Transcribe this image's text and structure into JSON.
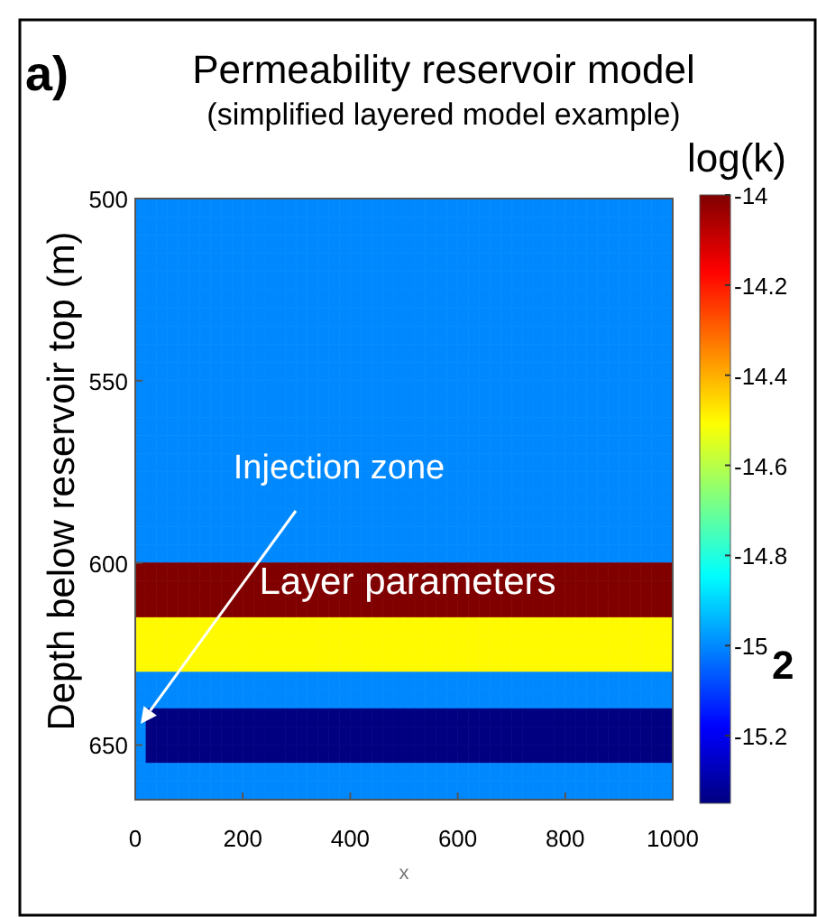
{
  "chart_data": {
    "type": "heatmap",
    "title": "Permeability reservoir model",
    "subtitle": "(simplified layered model example)",
    "ylabel": "Depth below reservoir top (m)",
    "xlabel": "x",
    "clabel": "log(k)",
    "annotations": [
      "a)",
      "Injection zone",
      "Layer parameters",
      "2"
    ],
    "xlim": [
      0,
      1000
    ],
    "xticks": [
      0,
      200,
      400,
      600,
      800,
      1000
    ],
    "ylim": [
      665,
      500
    ],
    "yticks": [
      500,
      550,
      600,
      650
    ],
    "clim": [
      -15.35,
      -14
    ],
    "cticks": [
      -14,
      -14.2,
      -14.4,
      -14.6,
      {
        "value": -14.8,
        "label": "-14.8"
      },
      -15,
      -15.2
    ],
    "cells": [
      [
        -15,
        -15,
        -15,
        -15,
        -15,
        -15,
        -15,
        -15,
        -15,
        -15,
        -15,
        -15,
        -15,
        -15,
        -15,
        -15,
        -15,
        -15,
        -15,
        -15,
        -15,
        -15,
        -15,
        -15,
        -15,
        -15,
        -15,
        -15,
        -15,
        -15,
        -15,
        -15,
        -15,
        -15,
        -15,
        -15,
        -15,
        -15,
        -15,
        -15,
        -15,
        -15,
        -15,
        -15,
        -15,
        -15,
        -15,
        -15,
        -15,
        -15
      ],
      [
        -15,
        -15,
        -15,
        -15,
        -15,
        -15,
        -15,
        -15,
        -15,
        -15,
        -15,
        -15,
        -15,
        -15,
        -15,
        -15,
        -15,
        -15,
        -15,
        -15,
        -15,
        -15,
        -15,
        -15,
        -15,
        -15,
        -15,
        -15,
        -15,
        -15,
        -15,
        -15,
        -15,
        -15,
        -15,
        -15,
        -15,
        -15,
        -15,
        -15,
        -15,
        -15,
        -15,
        -15,
        -15,
        -15,
        -15,
        -15,
        -15,
        -15
      ],
      [
        -15,
        -15,
        -15,
        -15,
        -15,
        -15,
        -15,
        -15,
        -15,
        -15,
        -15,
        -15,
        -15,
        -15,
        -15,
        -15,
        -15,
        -15,
        -15,
        -15,
        -15,
        -15,
        -15,
        -15,
        -15,
        -15,
        -15,
        -15,
        -15,
        -15,
        -15,
        -15,
        -15,
        -15,
        -15,
        -15,
        -15,
        -15,
        -15,
        -15,
        -15,
        -15,
        -15,
        -15,
        -15,
        -15,
        -15,
        -15,
        -15,
        -15
      ],
      [
        -15,
        -15,
        -15,
        -15,
        -15,
        -15,
        -15,
        -15,
        -15,
        -15,
        -15,
        -15,
        -15,
        -15,
        -15,
        -15,
        -15,
        -15,
        -15,
        -15,
        -15,
        -15,
        -15,
        -15,
        -15,
        -15,
        -15,
        -15,
        -15,
        -15,
        -15,
        -15,
        -15,
        -15,
        -15,
        -15,
        -15,
        -15,
        -15,
        -15,
        -15,
        -15,
        -15,
        -15,
        -15,
        -15,
        -15,
        -15,
        -15,
        -15
      ],
      [
        -15,
        -15,
        -15,
        -15,
        -15,
        -15,
        -15,
        -15,
        -15,
        -15,
        -15,
        -15,
        -15,
        -15,
        -15,
        -15,
        -15,
        -15,
        -15,
        -15,
        -15,
        -15,
        -15,
        -15,
        -15,
        -15,
        -15,
        -15,
        -15,
        -15,
        -15,
        -15,
        -15,
        -15,
        -15,
        -15,
        -15,
        -15,
        -15,
        -15,
        -15,
        -15,
        -15,
        -15,
        -15,
        -15,
        -15,
        -15,
        -15,
        -15
      ],
      [
        -15,
        -15,
        -15,
        -15,
        -15,
        -15,
        -15,
        -15,
        -15,
        -15,
        -15,
        -15,
        -15,
        -15,
        -15,
        -15,
        -15,
        -15,
        -15,
        -15,
        -15,
        -15,
        -15,
        -15,
        -15,
        -15,
        -15,
        -15,
        -15,
        -15,
        -15,
        -15,
        -15,
        -15,
        -15,
        -15,
        -15,
        -15,
        -15,
        -15,
        -15,
        -15,
        -15,
        -15,
        -15,
        -15,
        -15,
        -15,
        -15,
        -15
      ],
      [
        -15,
        -15,
        -15,
        -15,
        -15,
        -15,
        -15,
        -15,
        -15,
        -15,
        -15,
        -15,
        -15,
        -15,
        -15,
        -15,
        -15,
        -15,
        -15,
        -15,
        -15,
        -15,
        -15,
        -15,
        -15,
        -15,
        -15,
        -15,
        -15,
        -15,
        -15,
        -15,
        -15,
        -15,
        -15,
        -15,
        -15,
        -15,
        -15,
        -15,
        -15,
        -15,
        -15,
        -15,
        -15,
        -15,
        -15,
        -15,
        -15,
        -15
      ],
      [
        -15,
        -15,
        -15,
        -15,
        -15,
        -15,
        -15,
        -15,
        -15,
        -15,
        -15,
        -15,
        -15,
        -15,
        -15,
        -15,
        -15,
        -15,
        -15,
        -15,
        -15,
        -15,
        -15,
        -15,
        -15,
        -15,
        -15,
        -15,
        -15,
        -15,
        -15,
        -15,
        -15,
        -15,
        -15,
        -15,
        -15,
        -15,
        -15,
        -15,
        -15,
        -15,
        -15,
        -15,
        -15,
        -15,
        -15,
        -15,
        -15,
        -15
      ],
      [
        -15,
        -15,
        -15,
        -15,
        -15,
        -15,
        -15,
        -15,
        -15,
        -15,
        -15,
        -15,
        -15,
        -15,
        -15,
        -15,
        -15,
        -15,
        -15,
        -15,
        -15,
        -15,
        -15,
        -15,
        -15,
        -15,
        -15,
        -15,
        -15,
        -15,
        -15,
        -15,
        -15,
        -15,
        -15,
        -15,
        -15,
        -15,
        -15,
        -15,
        -15,
        -15,
        -15,
        -15,
        -15,
        -15,
        -15,
        -15,
        -15,
        -15
      ],
      [
        -15,
        -15,
        -15,
        -15,
        -15,
        -15,
        -15,
        -15,
        -15,
        -15,
        -15,
        -15,
        -15,
        -15,
        -15,
        -15,
        -15,
        -15,
        -15,
        -15,
        -15,
        -15,
        -15,
        -15,
        -15,
        -15,
        -15,
        -15,
        -15,
        -15,
        -15,
        -15,
        -15,
        -15,
        -15,
        -15,
        -15,
        -15,
        -15,
        -15,
        -15,
        -15,
        -15,
        -15,
        -15,
        -15,
        -15,
        -15,
        -15,
        -15
      ],
      [
        -15,
        -15,
        -15,
        -15,
        -15,
        -15,
        -15,
        -15,
        -15,
        -15,
        -15,
        -15,
        -15,
        -15,
        -15,
        -15,
        -15,
        -15,
        -15,
        -15,
        -15,
        -15,
        -15,
        -15,
        -15,
        -15,
        -15,
        -15,
        -15,
        -15,
        -15,
        -15,
        -15,
        -15,
        -15,
        -15,
        -15,
        -15,
        -15,
        -15,
        -15,
        -15,
        -15,
        -15,
        -15,
        -15,
        -15,
        -15,
        -15,
        -15
      ],
      [
        -15,
        -15,
        -15,
        -15,
        -15,
        -15,
        -15,
        -15,
        -15,
        -15,
        -15,
        -15,
        -15,
        -15,
        -15,
        -15,
        -15,
        -15,
        -15,
        -15,
        -15,
        -15,
        -15,
        -15,
        -15,
        -15,
        -15,
        -15,
        -15,
        -15,
        -15,
        -15,
        -15,
        -15,
        -15,
        -15,
        -15,
        -15,
        -15,
        -15,
        -15,
        -15,
        -15,
        -15,
        -15,
        -15,
        -15,
        -15,
        -15,
        -15
      ],
      [
        -15,
        -15,
        -15,
        -15,
        -15,
        -15,
        -15,
        -15,
        -15,
        -15,
        -15,
        -15,
        -15,
        -15,
        -15,
        -15,
        -15,
        -15,
        -15,
        -15,
        -15,
        -15,
        -15,
        -15,
        -15,
        -15,
        -15,
        -15,
        -15,
        -15,
        -15,
        -15,
        -15,
        -15,
        -15,
        -15,
        -15,
        -15,
        -15,
        -15,
        -15,
        -15,
        -15,
        -15,
        -15,
        -15,
        -15,
        -15,
        -15,
        -15
      ],
      [
        -15,
        -15,
        -15,
        -15,
        -15,
        -15,
        -15,
        -15,
        -15,
        -15,
        -15,
        -15,
        -15,
        -15,
        -15,
        -15,
        -15,
        -15,
        -15,
        -15,
        -15,
        -15,
        -15,
        -15,
        -15,
        -15,
        -15,
        -15,
        -15,
        -15,
        -15,
        -15,
        -15,
        -15,
        -15,
        -15,
        -15,
        -15,
        -15,
        -15,
        -15,
        -15,
        -15,
        -15,
        -15,
        -15,
        -15,
        -15,
        -15,
        -15
      ],
      [
        -15,
        -15,
        -15,
        -15,
        -15,
        -15,
        -15,
        -15,
        -15,
        -15,
        -15,
        -15,
        -15,
        -15,
        -15,
        -15,
        -15,
        -15,
        -15,
        -15,
        -15,
        -15,
        -15,
        -15,
        -15,
        -15,
        -15,
        -15,
        -15,
        -15,
        -15,
        -15,
        -15,
        -15,
        -15,
        -15,
        -15,
        -15,
        -15,
        -15,
        -15,
        -15,
        -15,
        -15,
        -15,
        -15,
        -15,
        -15,
        -15,
        -15
      ],
      [
        -15,
        -15,
        -15,
        -15,
        -15,
        -15,
        -15,
        -15,
        -15,
        -15,
        -15,
        -15,
        -15,
        -15,
        -15,
        -15,
        -15,
        -15,
        -15,
        -15,
        -15,
        -15,
        -15,
        -15,
        -15,
        -15,
        -15,
        -15,
        -15,
        -15,
        -15,
        -15,
        -15,
        -15,
        -15,
        -15,
        -15,
        -15,
        -15,
        -15,
        -15,
        -15,
        -15,
        -15,
        -15,
        -15,
        -15,
        -15,
        -15,
        -15
      ],
      [
        -15,
        -15,
        -15,
        -15,
        -15,
        -15,
        -15,
        -15,
        -15,
        -15,
        -15,
        -15,
        -15,
        -15,
        -15,
        -15,
        -15,
        -15,
        -15,
        -15,
        -15,
        -15,
        -15,
        -15,
        -15,
        -15,
        -15,
        -15,
        -15,
        -15,
        -15,
        -15,
        -15,
        -15,
        -15,
        -15,
        -15,
        -15,
        -15,
        -15,
        -15,
        -15,
        -15,
        -15,
        -15,
        -15,
        -15,
        -15,
        -15,
        -15
      ],
      [
        -15,
        -15,
        -15,
        -15,
        -15,
        -15,
        -15,
        -15,
        -15,
        -15,
        -15,
        -15,
        -15,
        -15,
        -15,
        -15,
        -15,
        -15,
        -15,
        -15,
        -15,
        -15,
        -15,
        -15,
        -15,
        -15,
        -15,
        -15,
        -15,
        -15,
        -15,
        -15,
        -15,
        -15,
        -15,
        -15,
        -15,
        -15,
        -15,
        -15,
        -15,
        -15,
        -15,
        -15,
        -15,
        -15,
        -15,
        -15,
        -15,
        -15
      ],
      [
        -15,
        -15,
        -15,
        -15,
        -15,
        -15,
        -15,
        -15,
        -15,
        -15,
        -15,
        -15,
        -15,
        -15,
        -15,
        -15,
        -15,
        -15,
        -15,
        -15,
        -15,
        -15,
        -15,
        -15,
        -15,
        -15,
        -15,
        -15,
        -15,
        -15,
        -15,
        -15,
        -15,
        -15,
        -15,
        -15,
        -15,
        -15,
        -15,
        -15,
        -15,
        -15,
        -15,
        -15,
        -15,
        -15,
        -15,
        -15,
        -15,
        -15
      ],
      [
        -15,
        -15,
        -15,
        -15,
        -15,
        -15,
        -15,
        -15,
        -15,
        -15,
        -15,
        -15,
        -15,
        -15,
        -15,
        -15,
        -15,
        -15,
        -15,
        -15,
        -15,
        -15,
        -15,
        -15,
        -15,
        -15,
        -15,
        -15,
        -15,
        -15,
        -15,
        -15,
        -15,
        -15,
        -15,
        -15,
        -15,
        -15,
        -15,
        -15,
        -15,
        -15,
        -15,
        -15,
        -15,
        -15,
        -15,
        -15,
        -15,
        -15
      ],
      [
        -14,
        -14,
        -14,
        -14,
        -14,
        -14,
        -14,
        -14,
        -14,
        -14,
        -14,
        -14,
        -14,
        -14,
        -14,
        -14,
        -14,
        -14,
        -14,
        -14,
        -14,
        -14,
        -14,
        -14,
        -14,
        -14,
        -14,
        -14,
        -14,
        -14,
        -14,
        -14,
        -14,
        -14,
        -14,
        -14,
        -14,
        -14,
        -14,
        -14,
        -14,
        -14,
        -14,
        -14,
        -14,
        -14,
        -14,
        -14,
        -14,
        -14
      ],
      [
        -14,
        -14,
        -14,
        -14,
        -14,
        -14,
        -14,
        -14,
        -14,
        -14,
        -14,
        -14,
        -14,
        -14,
        -14,
        -14,
        -14,
        -14,
        -14,
        -14,
        -14,
        -14,
        -14,
        -14,
        -14,
        -14,
        -14,
        -14,
        -14,
        -14,
        -14,
        -14,
        -14,
        -14,
        -14,
        -14,
        -14,
        -14,
        -14,
        -14,
        -14,
        -14,
        -14,
        -14,
        -14,
        -14,
        -14,
        -14,
        -14,
        -14
      ],
      [
        -14,
        -14,
        -14,
        -14,
        -14,
        -14,
        -14,
        -14,
        -14,
        -14,
        -14,
        -14,
        -14,
        -14,
        -14,
        -14,
        -14,
        -14,
        -14,
        -14,
        -14,
        -14,
        -14,
        -14,
        -14,
        -14,
        -14,
        -14,
        -14,
        -14,
        -14,
        -14,
        -14,
        -14,
        -14,
        -14,
        -14,
        -14,
        -14,
        -14,
        -14,
        -14,
        -14,
        -14,
        -14,
        -14,
        -14,
        -14,
        -14,
        -14
      ],
      [
        -14.5,
        -14.5,
        -14.5,
        -14.5,
        -14.5,
        -14.5,
        -14.5,
        -14.5,
        -14.5,
        -14.5,
        -14.5,
        -14.5,
        -14.5,
        -14.5,
        -14.5,
        -14.5,
        -14.5,
        -14.5,
        -14.5,
        -14.5,
        -14.5,
        -14.5,
        -14.5,
        -14.5,
        -14.5,
        -14.5,
        -14.5,
        -14.5,
        -14.5,
        -14.5,
        -14.5,
        -14.5,
        -14.5,
        -14.5,
        -14.5,
        -14.5,
        -14.5,
        -14.5,
        -14.5,
        -14.5,
        -14.5,
        -14.5,
        -14.5,
        -14.5,
        -14.5,
        -14.5,
        -14.5,
        -14.5,
        -14.5,
        -14.5
      ],
      [
        -14.5,
        -14.5,
        -14.5,
        -14.5,
        -14.5,
        -14.5,
        -14.5,
        -14.5,
        -14.5,
        -14.5,
        -14.5,
        -14.5,
        -14.5,
        -14.5,
        -14.5,
        -14.5,
        -14.5,
        -14.5,
        -14.5,
        -14.5,
        -14.5,
        -14.5,
        -14.5,
        -14.5,
        -14.5,
        -14.5,
        -14.5,
        -14.5,
        -14.5,
        -14.5,
        -14.5,
        -14.5,
        -14.5,
        -14.5,
        -14.5,
        -14.5,
        -14.5,
        -14.5,
        -14.5,
        -14.5,
        -14.5,
        -14.5,
        -14.5,
        -14.5,
        -14.5,
        -14.5,
        -14.5,
        -14.5,
        -14.5,
        -14.5
      ],
      [
        -14.5,
        -14.5,
        -14.5,
        -14.5,
        -14.5,
        -14.5,
        -14.5,
        -14.5,
        -14.5,
        -14.5,
        -14.5,
        -14.5,
        -14.5,
        -14.5,
        -14.5,
        -14.5,
        -14.5,
        -14.5,
        -14.5,
        -14.5,
        -14.5,
        -14.5,
        -14.5,
        -14.5,
        -14.5,
        -14.5,
        -14.5,
        -14.5,
        -14.5,
        -14.5,
        -14.5,
        -14.5,
        -14.5,
        -14.5,
        -14.5,
        -14.5,
        -14.5,
        -14.5,
        -14.5,
        -14.5,
        -14.5,
        -14.5,
        -14.5,
        -14.5,
        -14.5,
        -14.5,
        -14.5,
        -14.5,
        -14.5,
        -14.5
      ],
      [
        -15,
        -15,
        -15,
        -15,
        -15,
        -15,
        -15,
        -15,
        -15,
        -15,
        -15,
        -15,
        -15,
        -15,
        -15,
        -15,
        -15,
        -15,
        -15,
        -15,
        -15,
        -15,
        -15,
        -15,
        -15,
        -15,
        -15,
        -15,
        -15,
        -15,
        -15,
        -15,
        -15,
        -15,
        -15,
        -15,
        -15,
        -15,
        -15,
        -15,
        -15,
        -15,
        -15,
        -15,
        -15,
        -15,
        -15,
        -15,
        -15,
        -15
      ],
      [
        -15,
        -15,
        -15,
        -15,
        -15,
        -15,
        -15,
        -15,
        -15,
        -15,
        -15,
        -15,
        -15,
        -15,
        -15,
        -15,
        -15,
        -15,
        -15,
        -15,
        -15,
        -15,
        -15,
        -15,
        -15,
        -15,
        -15,
        -15,
        -15,
        -15,
        -15,
        -15,
        -15,
        -15,
        -15,
        -15,
        -15,
        -15,
        -15,
        -15,
        -15,
        -15,
        -15,
        -15,
        -15,
        -15,
        -15,
        -15,
        -15,
        -15
      ],
      [
        -15,
        -15.35,
        -15.35,
        -15.35,
        -15.35,
        -15.35,
        -15.35,
        -15.35,
        -15.35,
        -15.35,
        -15.35,
        -15.35,
        -15.35,
        -15.35,
        -15.35,
        -15.35,
        -15.35,
        -15.35,
        -15.35,
        -15.35,
        -15.35,
        -15.35,
        -15.35,
        -15.35,
        -15.35,
        -15.35,
        -15.35,
        -15.35,
        -15.35,
        -15.35,
        -15.35,
        -15.35,
        -15.35,
        -15.35,
        -15.35,
        -15.35,
        -15.35,
        -15.35,
        -15.35,
        -15.35,
        -15.35,
        -15.35,
        -15.35,
        -15.35,
        -15.35,
        -15.35,
        -15.35,
        -15.35,
        -15.35,
        -15.35
      ],
      [
        -15,
        -15.35,
        -15.35,
        -15.35,
        -15.35,
        -15.35,
        -15.35,
        -15.35,
        -15.35,
        -15.35,
        -15.35,
        -15.35,
        -15.35,
        -15.35,
        -15.35,
        -15.35,
        -15.35,
        -15.35,
        -15.35,
        -15.35,
        -15.35,
        -15.35,
        -15.35,
        -15.35,
        -15.35,
        -15.35,
        -15.35,
        -15.35,
        -15.35,
        -15.35,
        -15.35,
        -15.35,
        -15.35,
        -15.35,
        -15.35,
        -15.35,
        -15.35,
        -15.35,
        -15.35,
        -15.35,
        -15.35,
        -15.35,
        -15.35,
        -15.35,
        -15.35,
        -15.35,
        -15.35,
        -15.35,
        -15.35,
        -15.35
      ],
      [
        -15,
        -15.35,
        -15.35,
        -15.35,
        -15.35,
        -15.35,
        -15.35,
        -15.35,
        -15.35,
        -15.35,
        -15.35,
        -15.35,
        -15.35,
        -15.35,
        -15.35,
        -15.35,
        -15.35,
        -15.35,
        -15.35,
        -15.35,
        -15.35,
        -15.35,
        -15.35,
        -15.35,
        -15.35,
        -15.35,
        -15.35,
        -15.35,
        -15.35,
        -15.35,
        -15.35,
        -15.35,
        -15.35,
        -15.35,
        -15.35,
        -15.35,
        -15.35,
        -15.35,
        -15.35,
        -15.35,
        -15.35,
        -15.35,
        -15.35,
        -15.35,
        -15.35,
        -15.35,
        -15.35,
        -15.35,
        -15.35,
        -15.35
      ],
      [
        -15,
        -15,
        -15,
        -15,
        -15,
        -15,
        -15,
        -15,
        -15,
        -15,
        -15,
        -15,
        -15,
        -15,
        -15,
        -15,
        -15,
        -15,
        -15,
        -15,
        -15,
        -15,
        -15,
        -15,
        -15,
        -15,
        -15,
        -15,
        -15,
        -15,
        -15,
        -15,
        -15,
        -15,
        -15,
        -15,
        -15,
        -15,
        -15,
        -15,
        -15,
        -15,
        -15,
        -15,
        -15,
        -15,
        -15,
        -15,
        -15,
        -15
      ],
      [
        -15,
        -15,
        -15,
        -15,
        -15,
        -15,
        -15,
        -15,
        -15,
        -15,
        -15,
        -15,
        -15,
        -15,
        -15,
        -15,
        -15,
        -15,
        -15,
        -15,
        -15,
        -15,
        -15,
        -15,
        -15,
        -15,
        -15,
        -15,
        -15,
        -15,
        -15,
        -15,
        -15,
        -15,
        -15,
        -15,
        -15,
        -15,
        -15,
        -15,
        -15,
        -15,
        -15,
        -15,
        -15,
        -15,
        -15,
        -15,
        -15,
        -15
      ]
    ]
  }
}
